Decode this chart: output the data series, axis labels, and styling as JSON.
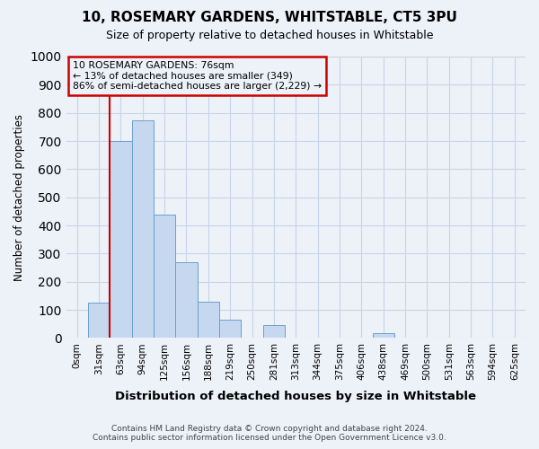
{
  "title": "10, ROSEMARY GARDENS, WHITSTABLE, CT5 3PU",
  "subtitle": "Size of property relative to detached houses in Whitstable",
  "xlabel": "Distribution of detached houses by size in Whitstable",
  "ylabel": "Number of detached properties",
  "footer_line1": "Contains HM Land Registry data © Crown copyright and database right 2024.",
  "footer_line2": "Contains public sector information licensed under the Open Government Licence v3.0.",
  "bin_labels": [
    "0sqm",
    "31sqm",
    "63sqm",
    "94sqm",
    "125sqm",
    "156sqm",
    "188sqm",
    "219sqm",
    "250sqm",
    "281sqm",
    "313sqm",
    "344sqm",
    "375sqm",
    "406sqm",
    "438sqm",
    "469sqm",
    "500sqm",
    "531sqm",
    "563sqm",
    "594sqm",
    "625sqm"
  ],
  "bar_values": [
    0,
    125,
    700,
    775,
    440,
    270,
    130,
    65,
    0,
    45,
    0,
    0,
    0,
    0,
    18,
    0,
    0,
    0,
    0,
    0,
    0
  ],
  "ylim": [
    0,
    1000
  ],
  "yticks": [
    0,
    100,
    200,
    300,
    400,
    500,
    600,
    700,
    800,
    900,
    1000
  ],
  "bar_color": "#c5d8f0",
  "bar_edge_color": "#6ba0cc",
  "highlight_bar_index": 2,
  "highlight_color": "#cc0000",
  "annotation_title": "10 ROSEMARY GARDENS: 76sqm",
  "annotation_line1": "← 13% of detached houses are smaller (349)",
  "annotation_line2": "86% of semi-detached houses are larger (2,229) →",
  "annotation_box_edgecolor": "#cc0000",
  "grid_color": "#c8d4e8",
  "bg_color": "#edf1f8"
}
